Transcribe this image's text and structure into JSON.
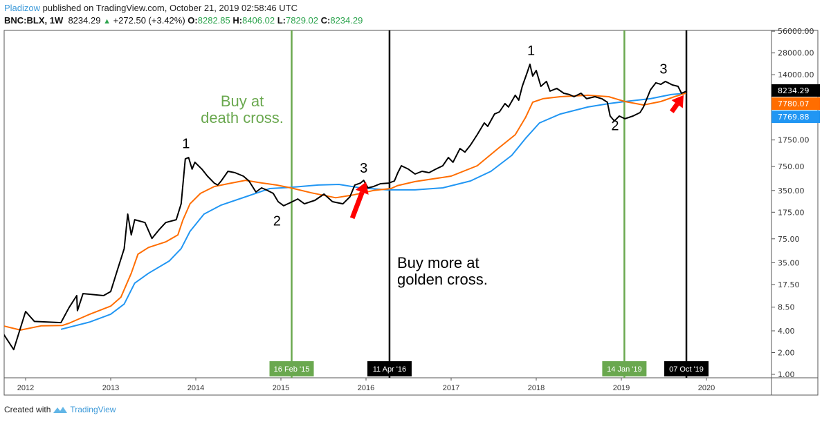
{
  "header": {
    "author": "Pladizow",
    "published": "published on TradingView.com, October 21, 2019 02:58:46 UTC",
    "symbol": "BNC:BLX, 1W",
    "last": "8234.29",
    "change": "+272.50 (+3.42%)",
    "o_label": "O:",
    "o": "8282.85",
    "h_label": "H:",
    "h": "8406.02",
    "l_label": "L:",
    "l": "7829.02",
    "c_label": "C:",
    "c": "8234.29"
  },
  "footer": {
    "created_with": "Created with",
    "brand": "TradingView"
  },
  "colors": {
    "price": "#000000",
    "ma_orange": "#ff6d00",
    "ma_blue": "#2196f3",
    "green_line": "#6aa84f",
    "arrow": "#ff0000",
    "up": "#2da44e"
  },
  "chart_data": {
    "type": "line",
    "y_scale": "log",
    "ylim": [
      1,
      56000
    ],
    "xlim": [
      "2011-09-20",
      "2020-06-01"
    ],
    "grid": false,
    "y_ticks": [
      "56000.00",
      "28000.00",
      "14000.00",
      "1750.00",
      "750.00",
      "350.00",
      "175.00",
      "75.00",
      "35.00",
      "17.50",
      "8.50",
      "4.00",
      "2.00",
      "1.00"
    ],
    "y_tick_values": [
      56000,
      28000,
      14000,
      1750,
      750,
      350,
      175,
      75,
      35,
      17.5,
      8.5,
      4,
      2,
      1
    ],
    "x_ticks": [
      {
        "label": "2012",
        "date": "2012-01-01"
      },
      {
        "label": "2013",
        "date": "2013-01-01"
      },
      {
        "label": "2014",
        "date": "2014-01-01"
      },
      {
        "label": "2015",
        "date": "2015-01-01"
      },
      {
        "label": "2016",
        "date": "2016-01-01"
      },
      {
        "label": "2017",
        "date": "2017-01-01"
      },
      {
        "label": "2018",
        "date": "2018-01-01"
      },
      {
        "label": "2019",
        "date": "2019-01-01"
      },
      {
        "label": "2020",
        "date": "2020-01-01"
      }
    ],
    "price_labels": [
      {
        "value": "8234.29",
        "color": "#000000",
        "y": 8234.29
      },
      {
        "value": "7780.07",
        "color": "#ff6d00",
        "y": 7780.07
      },
      {
        "value": "7769.88",
        "color": "#2196f3",
        "y": 7769.88
      }
    ],
    "series": [
      {
        "key": "price",
        "color": "#000000",
        "points": [
          [
            "2011-09-26",
            3.7
          ],
          [
            "2011-11-11",
            2.2
          ],
          [
            "2012-01-01",
            7.4
          ],
          [
            "2012-02-08",
            5.4
          ],
          [
            "2012-06-01",
            5.2
          ],
          [
            "2012-07-06",
            8.4
          ],
          [
            "2012-08-08",
            12.3
          ],
          [
            "2012-08-11",
            7.6
          ],
          [
            "2012-09-04",
            13.1
          ],
          [
            "2012-12-01",
            12.3
          ],
          [
            "2013-01-01",
            14
          ],
          [
            "2013-01-30",
            28
          ],
          [
            "2013-02-28",
            55
          ],
          [
            "2013-03-15",
            165
          ],
          [
            "2013-03-30",
            85
          ],
          [
            "2013-04-14",
            138
          ],
          [
            "2013-05-28",
            126
          ],
          [
            "2013-06-27",
            76
          ],
          [
            "2013-07-26",
            99
          ],
          [
            "2013-08-25",
            126
          ],
          [
            "2013-10-09",
            138
          ],
          [
            "2013-10-30",
            229
          ],
          [
            "2013-11-17",
            956
          ],
          [
            "2013-12-01",
            1000
          ],
          [
            "2013-12-16",
            690
          ],
          [
            "2013-12-28",
            860
          ],
          [
            "2014-01-27",
            690
          ],
          [
            "2014-02-20",
            553
          ],
          [
            "2014-03-21",
            443
          ],
          [
            "2014-04-05",
            416
          ],
          [
            "2014-04-20",
            474
          ],
          [
            "2014-05-19",
            645
          ],
          [
            "2014-06-18",
            617
          ],
          [
            "2014-07-24",
            553
          ],
          [
            "2014-08-17",
            474
          ],
          [
            "2014-09-16",
            333
          ],
          [
            "2014-10-10",
            380
          ],
          [
            "2014-10-30",
            357
          ],
          [
            "2014-11-29",
            319
          ],
          [
            "2014-12-20",
            245
          ],
          [
            "2015-01-13",
            215
          ],
          [
            "2015-02-12",
            239
          ],
          [
            "2015-03-14",
            267
          ],
          [
            "2015-04-12",
            229
          ],
          [
            "2015-05-27",
            256
          ],
          [
            "2015-07-05",
            312
          ],
          [
            "2015-08-10",
            245
          ],
          [
            "2015-09-24",
            229
          ],
          [
            "2015-10-24",
            286
          ],
          [
            "2015-11-14",
            416
          ],
          [
            "2015-12-08",
            443
          ],
          [
            "2015-12-22",
            484
          ],
          [
            "2016-01-09",
            380
          ],
          [
            "2016-02-02",
            397
          ],
          [
            "2016-03-03",
            434
          ],
          [
            "2016-04-08",
            443
          ],
          [
            "2016-05-02",
            474
          ],
          [
            "2016-05-17",
            617
          ],
          [
            "2016-06-01",
            770
          ],
          [
            "2016-07-01",
            690
          ],
          [
            "2016-07-30",
            591
          ],
          [
            "2016-08-29",
            645
          ],
          [
            "2016-09-28",
            617
          ],
          [
            "2016-10-27",
            690
          ],
          [
            "2016-11-26",
            770
          ],
          [
            "2016-12-20",
            1000
          ],
          [
            "2017-01-09",
            860
          ],
          [
            "2017-02-08",
            1330
          ],
          [
            "2017-03-01",
            1190
          ],
          [
            "2017-03-25",
            1490
          ],
          [
            "2017-04-23",
            2070
          ],
          [
            "2017-05-23",
            3010
          ],
          [
            "2017-06-07",
            2700
          ],
          [
            "2017-07-06",
            4000
          ],
          [
            "2017-07-27",
            4280
          ],
          [
            "2017-08-20",
            5570
          ],
          [
            "2017-09-04",
            5000
          ],
          [
            "2017-10-03",
            7270
          ],
          [
            "2017-10-18",
            6220
          ],
          [
            "2017-11-02",
            9660
          ],
          [
            "2017-11-23",
            15000
          ],
          [
            "2017-12-05",
            19500
          ],
          [
            "2017-12-17",
            13400
          ],
          [
            "2018-01-01",
            16000
          ],
          [
            "2018-01-21",
            9660
          ],
          [
            "2018-02-14",
            11300
          ],
          [
            "2018-03-01",
            8300
          ],
          [
            "2018-03-30",
            9050
          ],
          [
            "2018-04-29",
            7750
          ],
          [
            "2018-05-23",
            7430
          ],
          [
            "2018-06-12",
            6940
          ],
          [
            "2018-07-12",
            7750
          ],
          [
            "2018-08-05",
            6510
          ],
          [
            "2018-09-10",
            6940
          ],
          [
            "2018-10-09",
            6510
          ],
          [
            "2018-11-02",
            5830
          ],
          [
            "2018-11-14",
            3750
          ],
          [
            "2018-12-02",
            3210
          ],
          [
            "2018-12-23",
            3750
          ],
          [
            "2019-01-16",
            3440
          ],
          [
            "2019-02-20",
            3750
          ],
          [
            "2019-03-22",
            4190
          ],
          [
            "2019-04-06",
            5000
          ],
          [
            "2019-05-06",
            8660
          ],
          [
            "2019-05-29",
            10800
          ],
          [
            "2019-06-19",
            10300
          ],
          [
            "2019-07-09",
            11300
          ],
          [
            "2019-08-08",
            10100
          ],
          [
            "2019-09-01",
            9660
          ],
          [
            "2019-09-16",
            7750
          ],
          [
            "2019-10-06",
            8234.29
          ]
        ]
      },
      {
        "key": "ma_orange",
        "color": "#ff6d00",
        "points": [
          [
            "2011-09-26",
            4.7
          ],
          [
            "2011-12-10",
            4.1
          ],
          [
            "2012-03-09",
            4.7
          ],
          [
            "2012-06-07",
            4.75
          ],
          [
            "2012-07-06",
            5.1
          ],
          [
            "2012-10-03",
            6.8
          ],
          [
            "2013-01-01",
            8.8
          ],
          [
            "2013-02-14",
            11.7
          ],
          [
            "2013-03-30",
            25
          ],
          [
            "2013-04-28",
            46
          ],
          [
            "2013-06-12",
            57
          ],
          [
            "2013-08-25",
            68
          ],
          [
            "2013-10-16",
            85
          ],
          [
            "2013-11-07",
            138
          ],
          [
            "2013-12-07",
            229
          ],
          [
            "2014-01-21",
            319
          ],
          [
            "2014-03-21",
            397
          ],
          [
            "2014-05-19",
            434
          ],
          [
            "2014-08-02",
            484
          ],
          [
            "2014-10-15",
            443
          ],
          [
            "2014-12-13",
            416
          ],
          [
            "2015-02-12",
            380
          ],
          [
            "2015-05-12",
            325
          ],
          [
            "2015-08-24",
            278
          ],
          [
            "2015-11-08",
            304
          ],
          [
            "2016-02-02",
            350
          ],
          [
            "2016-04-17",
            372
          ],
          [
            "2016-05-17",
            410
          ],
          [
            "2016-07-30",
            465
          ],
          [
            "2017-01-01",
            553
          ],
          [
            "2017-04-23",
            770
          ],
          [
            "2017-07-21",
            1330
          ],
          [
            "2017-10-03",
            2070
          ],
          [
            "2017-11-17",
            3620
          ],
          [
            "2017-12-17",
            5830
          ],
          [
            "2018-01-30",
            6510
          ],
          [
            "2018-04-14",
            6940
          ],
          [
            "2018-08-11",
            7270
          ],
          [
            "2018-11-08",
            6940
          ],
          [
            "2019-01-16",
            5950
          ],
          [
            "2019-04-06",
            5330
          ],
          [
            "2019-06-19",
            5950
          ],
          [
            "2019-08-17",
            6940
          ],
          [
            "2019-10-06",
            7780.07
          ]
        ]
      },
      {
        "key": "ma_blue",
        "color": "#2196f3",
        "points": [
          [
            "2012-06-01",
            4.2
          ],
          [
            "2012-10-03",
            5.3
          ],
          [
            "2013-01-01",
            6.8
          ],
          [
            "2013-02-28",
            9.4
          ],
          [
            "2013-04-14",
            18.3
          ],
          [
            "2013-06-12",
            25
          ],
          [
            "2013-09-09",
            37
          ],
          [
            "2013-10-30",
            55
          ],
          [
            "2013-12-07",
            95
          ],
          [
            "2014-02-05",
            165
          ],
          [
            "2014-04-20",
            220
          ],
          [
            "2014-08-02",
            286
          ],
          [
            "2014-11-14",
            372
          ],
          [
            "2015-02-12",
            386
          ],
          [
            "2015-06-10",
            416
          ],
          [
            "2015-09-07",
            425
          ],
          [
            "2015-12-08",
            380
          ],
          [
            "2016-04-02",
            357
          ],
          [
            "2016-07-30",
            357
          ],
          [
            "2016-11-26",
            380
          ],
          [
            "2017-03-25",
            474
          ],
          [
            "2017-06-21",
            645
          ],
          [
            "2017-09-18",
            1070
          ],
          [
            "2017-11-17",
            1850
          ],
          [
            "2018-01-15",
            3010
          ],
          [
            "2018-04-14",
            4000
          ],
          [
            "2018-08-11",
            5000
          ],
          [
            "2018-11-08",
            5570
          ],
          [
            "2019-01-16",
            5950
          ],
          [
            "2019-05-06",
            6510
          ],
          [
            "2019-08-02",
            7430
          ],
          [
            "2019-10-06",
            7769.88
          ]
        ]
      }
    ],
    "vertical_lines": [
      {
        "date": "2015-02-16",
        "label": "16 Feb '15",
        "color": "#6aa84f"
      },
      {
        "date": "2016-04-11",
        "label": "11 Apr '16",
        "color": "#000000"
      },
      {
        "date": "2019-01-14",
        "label": "14 Jan '19",
        "color": "#6aa84f"
      },
      {
        "date": "2019-10-07",
        "label": "07 Oct '19",
        "color": "#000000"
      }
    ],
    "annotations": [
      {
        "text": "1",
        "date": "2013-11-20",
        "y": 1350
      },
      {
        "text": "2",
        "date": "2014-12-15",
        "y": 115
      },
      {
        "text": "3",
        "date": "2015-12-22",
        "y": 620
      },
      {
        "text": "1",
        "date": "2017-12-10",
        "y": 26000
      },
      {
        "text": "2",
        "date": "2018-12-05",
        "y": 2400
      },
      {
        "text": "3",
        "date": "2019-07-01",
        "y": 14500
      }
    ],
    "text_notes": [
      {
        "lines": [
          "Buy at",
          "death cross."
        ],
        "color": "#6aa84f"
      },
      {
        "lines": [
          "Buy more at",
          "golden cross."
        ],
        "color": "#000000"
      }
    ],
    "arrows": [
      {
        "from": [
          "2015-11-03",
          145
        ],
        "to": [
          "2016-01-01",
          460
        ]
      },
      {
        "from": [
          "2019-08-05",
          4300
        ],
        "to": [
          "2019-09-25",
          7300
        ]
      }
    ]
  }
}
